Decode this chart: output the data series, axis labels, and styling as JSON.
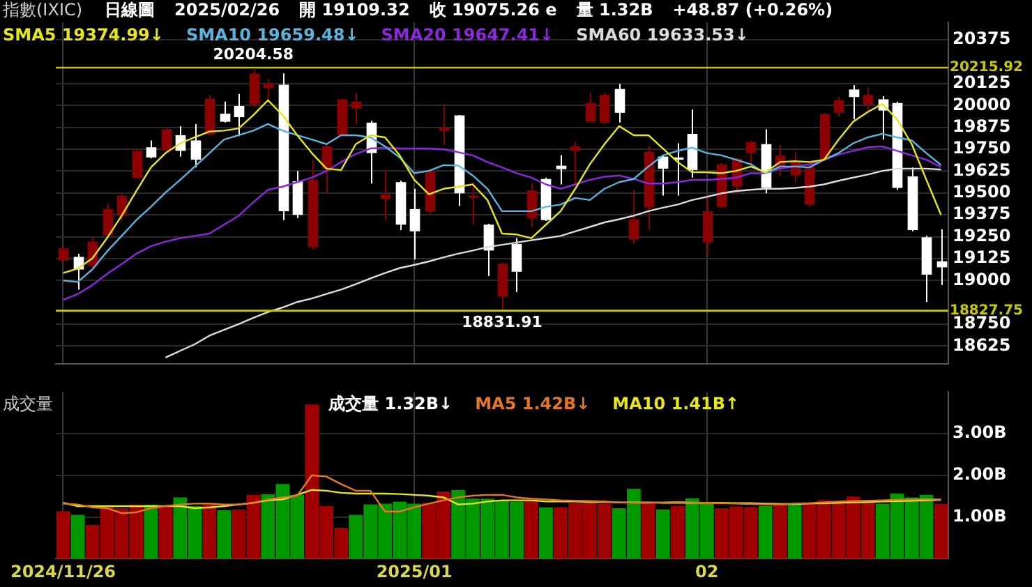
{
  "chart_data": [
    {
      "type": "candlestick",
      "title": "指數(IXIC)",
      "annotations": [
        "日線圖",
        "2025/02/26",
        "開 19109.32",
        "收 19075.26 e",
        "量 1.32B",
        "+48.87 (+0.26%)",
        {
          "text": "20204.58",
          "y": 20204.58
        },
        {
          "text": "18831.91",
          "y": 18831.91
        }
      ],
      "categories": [
        "2024/11/26",
        null,
        null,
        null,
        null,
        null,
        null,
        null,
        null,
        null,
        null,
        null,
        null,
        null,
        null,
        null,
        null,
        null,
        null,
        null,
        null,
        null,
        null,
        null,
        "2025/01",
        null,
        null,
        null,
        null,
        null,
        null,
        null,
        null,
        null,
        null,
        null,
        null,
        null,
        null,
        null,
        null,
        null,
        null,
        null,
        "02",
        null,
        null,
        null,
        null,
        null,
        null,
        null,
        null,
        null,
        null,
        null,
        null,
        null,
        null,
        null,
        null
      ],
      "ohlc": [
        [
          19114,
          19196,
          19109,
          19183
        ],
        [
          19135,
          19153,
          18948,
          19063
        ],
        [
          19084,
          19250,
          19071,
          19222
        ],
        [
          19260,
          19442,
          19255,
          19408
        ],
        [
          19370,
          19493,
          19345,
          19485
        ],
        [
          19587,
          19746,
          19582,
          19741
        ],
        [
          19761,
          19800,
          19697,
          19703
        ],
        [
          19746,
          19869,
          19741,
          19864
        ],
        [
          19830,
          19882,
          19708,
          19741
        ],
        [
          19800,
          19894,
          19646,
          19690
        ],
        [
          19835,
          20060,
          19830,
          20040
        ],
        [
          19953,
          20022,
          19902,
          19907
        ],
        [
          19997,
          20066,
          19825,
          19933
        ],
        [
          20009,
          20204.58,
          19994,
          20181
        ],
        [
          20099,
          20150,
          20035,
          20124
        ],
        [
          20119,
          20183,
          19345,
          19396
        ],
        [
          19567,
          19626,
          19357,
          19375
        ],
        [
          19191,
          19690,
          19176,
          19575
        ],
        [
          19639,
          19774,
          19503,
          19766
        ],
        [
          19830,
          20040,
          19825,
          20035
        ],
        [
          19984,
          20073,
          19894,
          20022
        ],
        [
          19902,
          19912,
          19554,
          19728
        ],
        [
          19467,
          19631,
          19345,
          19493
        ],
        [
          19562,
          19570,
          19288,
          19319
        ],
        [
          19408,
          19524,
          19120,
          19281
        ],
        [
          19396,
          19639,
          19383,
          19626
        ],
        [
          19856,
          20009,
          19774,
          19874
        ],
        [
          19943,
          19945,
          19426,
          19498
        ],
        [
          19472,
          19562,
          19319,
          19485
        ],
        [
          19319,
          19324,
          19025,
          19171
        ],
        [
          18910,
          19102,
          18831.91,
          19096
        ],
        [
          19209,
          19242,
          18935,
          19050
        ],
        [
          19357,
          19554,
          19306,
          19516
        ],
        [
          19580,
          19588,
          19340,
          19345
        ],
        [
          19656,
          19715,
          19549,
          19636
        ],
        [
          19741,
          19792,
          19554,
          19766
        ],
        [
          19907,
          20073,
          19902,
          20014
        ],
        [
          19902,
          20073,
          19894,
          20060
        ],
        [
          20094,
          20124,
          19902,
          19958
        ],
        [
          19235,
          19516,
          19209,
          19350
        ],
        [
          19421,
          19766,
          19293,
          19736
        ],
        [
          19708,
          19715,
          19485,
          19639
        ],
        [
          19703,
          19784,
          19485,
          19690
        ],
        [
          19838,
          19976,
          19588,
          19631
        ],
        [
          19217,
          19472,
          19145,
          19396
        ],
        [
          19421,
          19672,
          19416,
          19664
        ],
        [
          19536,
          19703,
          19498,
          19697
        ],
        [
          19728,
          19800,
          19664,
          19792
        ],
        [
          19779,
          19864,
          19498,
          19529
        ],
        [
          19651,
          19774,
          19600,
          19715
        ],
        [
          19600,
          19733,
          19562,
          19677
        ],
        [
          19434,
          19677,
          19421,
          19651
        ],
        [
          19690,
          19958,
          19682,
          19951
        ],
        [
          19958,
          20048,
          19938,
          20030
        ],
        [
          20091,
          20117,
          19920,
          20048
        ],
        [
          20004,
          20104,
          19963,
          20060
        ],
        [
          20035,
          20053,
          19805,
          19971
        ],
        [
          20014,
          20022,
          19518,
          19529
        ],
        [
          19595,
          19646,
          19281,
          19288
        ],
        [
          19247,
          19255,
          18877,
          19033
        ],
        [
          19109.32,
          19293,
          18974,
          19075.26
        ]
      ],
      "colors": [
        "#8b0000",
        "#ffffff",
        "#8b0000",
        "#8b0000",
        "#8b0000",
        "#8b0000",
        "#ffffff",
        "#8b0000",
        "#ffffff",
        "#ffffff",
        "#8b0000",
        "#ffffff",
        "#ffffff",
        "#8b0000",
        "#8b0000",
        "#ffffff",
        "#ffffff",
        "#8b0000",
        "#8b0000",
        "#8b0000",
        "#8b0000",
        "#ffffff",
        "#8b0000",
        "#ffffff",
        "#ffffff",
        "#8b0000",
        "#8b0000",
        "#ffffff",
        "#8b0000",
        "#ffffff",
        "#8b0000",
        "#ffffff",
        "#8b0000",
        "#ffffff",
        "#ffffff",
        "#8b0000",
        "#8b0000",
        "#8b0000",
        "#ffffff",
        "#8b0000",
        "#8b0000",
        "#ffffff",
        "#ffffff",
        "#ffffff",
        "#8b0000",
        "#8b0000",
        "#8b0000",
        "#8b0000",
        "#ffffff",
        "#8b0000",
        "#8b0000",
        "#8b0000",
        "#8b0000",
        "#8b0000",
        "#ffffff",
        "#8b0000",
        "#ffffff",
        "#ffffff",
        "#ffffff",
        "#ffffff",
        "#ffffff"
      ],
      "series": [
        {
          "type": "line",
          "name": "SMA5 19374.99↓",
          "color": "#e6e619",
          "values": [
            19043,
            19068,
            19127,
            19242,
            19370,
            19511,
            19646,
            19728,
            19784,
            19818,
            19851,
            19856,
            19869,
            19945,
            20030,
            19945,
            19830,
            19728,
            19639,
            19631,
            19779,
            19830,
            19818,
            19715,
            19575,
            19493,
            19524,
            19536,
            19549,
            19460,
            19268,
            19263,
            19242,
            19319,
            19396,
            19524,
            19664,
            19779,
            19882,
            19830,
            19830,
            19754,
            19677,
            19618,
            19618,
            19613,
            19626,
            19651,
            19618,
            19677,
            19682,
            19677,
            19690,
            19805,
            19907,
            19963,
            20009,
            19920,
            19779,
            19575,
            19374.99
          ]
        },
        {
          "type": "line",
          "name": "SMA10 19659.48↓",
          "color": "#5ab4dc",
          "values": [
            19000,
            18992,
            19063,
            19166,
            19255,
            19345,
            19421,
            19503,
            19575,
            19651,
            19728,
            19805,
            19830,
            19856,
            19894,
            19856,
            19830,
            19805,
            19779,
            19830,
            19830,
            19818,
            19766,
            19703,
            19613,
            19626,
            19659,
            19657,
            19600,
            19524,
            19396,
            19396,
            19396,
            19421,
            19434,
            19472,
            19460,
            19524,
            19562,
            19580,
            19651,
            19715,
            19741,
            19759,
            19728,
            19715,
            19690,
            19664,
            19613,
            19651,
            19651,
            19646,
            19690,
            19728,
            19784,
            19818,
            19838,
            19818,
            19800,
            19728,
            19659.48
          ]
        },
        {
          "type": "line",
          "name": "SMA20 19647.41↓",
          "color": "#8c28dc",
          "values": [
            18889,
            18923,
            18974,
            19038,
            19094,
            19153,
            19196,
            19222,
            19242,
            19255,
            19268,
            19319,
            19370,
            19447,
            19518,
            19536,
            19562,
            19588,
            19626,
            19677,
            19723,
            19754,
            19759,
            19754,
            19754,
            19754,
            19749,
            19733,
            19715,
            19677,
            19646,
            19613,
            19588,
            19549,
            19524,
            19549,
            19575,
            19593,
            19600,
            19580,
            19554,
            19554,
            19562,
            19575,
            19575,
            19580,
            19588,
            19613,
            19613,
            19639,
            19651,
            19664,
            19690,
            19720,
            19741,
            19761,
            19766,
            19741,
            19715,
            19690,
            19647.41
          ]
        },
        {
          "type": "line",
          "name": "SMA60 19633.53↓",
          "color": "#dcdcdc",
          "values": [
            null,
            null,
            null,
            null,
            null,
            null,
            null,
            18560,
            18598,
            18636,
            18685,
            18718,
            18751,
            18787,
            18820,
            18846,
            18877,
            18897,
            18923,
            18948,
            18979,
            19012,
            19043,
            19071,
            19089,
            19109,
            19132,
            19153,
            19171,
            19191,
            19204,
            19217,
            19230,
            19242,
            19255,
            19281,
            19306,
            19332,
            19350,
            19370,
            19396,
            19416,
            19434,
            19460,
            19478,
            19498,
            19511,
            19518,
            19524,
            19524,
            19529,
            19536,
            19549,
            19570,
            19588,
            19605,
            19626,
            19639,
            19639,
            19639,
            19633.53
          ]
        }
      ],
      "ylim": [
        18525,
        20475
      ],
      "yticks": [
        18625,
        18750,
        19000,
        19125,
        19250,
        19375,
        19500,
        19625,
        19750,
        19875,
        20000,
        20125,
        20375
      ],
      "ref_lines": [
        {
          "axis": "y",
          "value": 20215.92,
          "label": "20215.92",
          "color": "#c8c800"
        },
        {
          "axis": "y",
          "value": 18827.75,
          "label": "18827.75",
          "color": "#c8c800"
        }
      ],
      "grid": true,
      "legend": "top left",
      "tick_labels": "y"
    },
    {
      "type": "bar",
      "title": "成交量",
      "categories": [
        "2024/11/26",
        null,
        null,
        null,
        null,
        null,
        null,
        null,
        null,
        null,
        null,
        null,
        null,
        null,
        null,
        null,
        null,
        null,
        null,
        null,
        null,
        null,
        null,
        null,
        "2025/01",
        null,
        null,
        null,
        null,
        null,
        null,
        null,
        null,
        null,
        null,
        null,
        null,
        null,
        null,
        null,
        null,
        null,
        null,
        null,
        "02",
        null,
        null,
        null,
        null,
        null,
        null,
        null,
        null,
        null,
        null,
        null,
        null,
        null,
        null,
        null,
        null
      ],
      "series": [
        {
          "type": "bar",
          "name": "成交量 1.32B↓",
          "colors": [
            "#a00000",
            "#009a00",
            "#a00000",
            "#a00000",
            "#a00000",
            "#a00000",
            "#009a00",
            "#a00000",
            "#009a00",
            "#009a00",
            "#a00000",
            "#009a00",
            "#a00000",
            "#a00000",
            "#009a00",
            "#009a00",
            "#009a00",
            "#a00000",
            "#a00000",
            "#a00000",
            "#009a00",
            "#009a00",
            "#009a00",
            "#009a00",
            "#009a00",
            "#a00000",
            "#a00000",
            "#009a00",
            "#009a00",
            "#009a00",
            "#009a00",
            "#009a00",
            "#a00000",
            "#009a00",
            "#a00000",
            "#a00000",
            "#a00000",
            "#a00000",
            "#009a00",
            "#009a00",
            "#a00000",
            "#009a00",
            "#a00000",
            "#009a00",
            "#009a00",
            "#a00000",
            "#a00000",
            "#a00000",
            "#009a00",
            "#a00000",
            "#009a00",
            "#a00000",
            "#a00000",
            "#a00000",
            "#a00000",
            "#a00000",
            "#009a00",
            "#009a00",
            "#009a00",
            "#009a00",
            "#a00000"
          ],
          "values": [
            1.14,
            1.05,
            0.81,
            1.26,
            1.21,
            1.29,
            1.29,
            1.23,
            1.47,
            1.26,
            1.34,
            1.16,
            1.18,
            1.53,
            1.55,
            1.79,
            1.53,
            3.7,
            1.26,
            0.74,
            1.05,
            1.3,
            1.32,
            1.37,
            1.32,
            1.34,
            1.61,
            1.65,
            1.44,
            1.44,
            1.4,
            1.37,
            1.4,
            1.23,
            1.24,
            1.34,
            1.34,
            1.32,
            1.21,
            1.68,
            1.34,
            1.18,
            1.26,
            1.45,
            1.34,
            1.21,
            1.25,
            1.24,
            1.26,
            1.34,
            1.32,
            1.3,
            1.4,
            1.34,
            1.49,
            1.4,
            1.32,
            1.56,
            1.47,
            1.53,
            1.32
          ]
        },
        {
          "type": "line",
          "name": "MA5 1.42B↓",
          "color": "#e07828",
          "values": [
            1.32,
            1.3,
            1.23,
            1.21,
            1.09,
            1.11,
            1.21,
            1.26,
            1.3,
            1.32,
            1.32,
            1.3,
            1.3,
            1.34,
            1.42,
            1.47,
            1.51,
            2.0,
            1.97,
            1.79,
            1.63,
            1.63,
            1.13,
            1.13,
            1.23,
            1.32,
            1.4,
            1.47,
            1.51,
            1.53,
            1.53,
            1.47,
            1.44,
            1.42,
            1.4,
            1.39,
            1.38,
            1.37,
            1.35,
            1.34,
            1.34,
            1.35,
            1.36,
            1.35,
            1.34,
            1.33,
            1.32,
            1.31,
            1.3,
            1.3,
            1.32,
            1.33,
            1.35,
            1.37,
            1.38,
            1.39,
            1.4,
            1.41,
            1.42,
            1.43,
            1.42
          ]
        },
        {
          "type": "line",
          "name": "MA10 1.41B↑",
          "color": "#e6e619",
          "values": [
            1.34,
            1.26,
            1.26,
            1.26,
            1.26,
            1.26,
            1.26,
            1.26,
            1.26,
            1.21,
            1.23,
            1.26,
            1.3,
            1.34,
            1.4,
            1.42,
            1.53,
            1.65,
            1.63,
            1.58,
            1.56,
            1.56,
            1.56,
            1.55,
            1.53,
            1.51,
            1.47,
            1.3,
            1.32,
            1.37,
            1.4,
            1.4,
            1.4,
            1.37,
            1.37,
            1.37,
            1.36,
            1.36,
            1.35,
            1.35,
            1.35,
            1.34,
            1.34,
            1.34,
            1.34,
            1.34,
            1.33,
            1.33,
            1.32,
            1.31,
            1.31,
            1.32,
            1.33,
            1.34,
            1.35,
            1.36,
            1.37,
            1.38,
            1.39,
            1.4,
            1.41
          ]
        }
      ],
      "ylim": [
        0,
        4
      ],
      "yticks": [
        {
          "value": 1,
          "label": "1.00B"
        },
        {
          "value": 2,
          "label": "2.00B"
        },
        {
          "value": 3,
          "label": "3.00B"
        }
      ],
      "grid": true,
      "legend": "top left"
    }
  ]
}
